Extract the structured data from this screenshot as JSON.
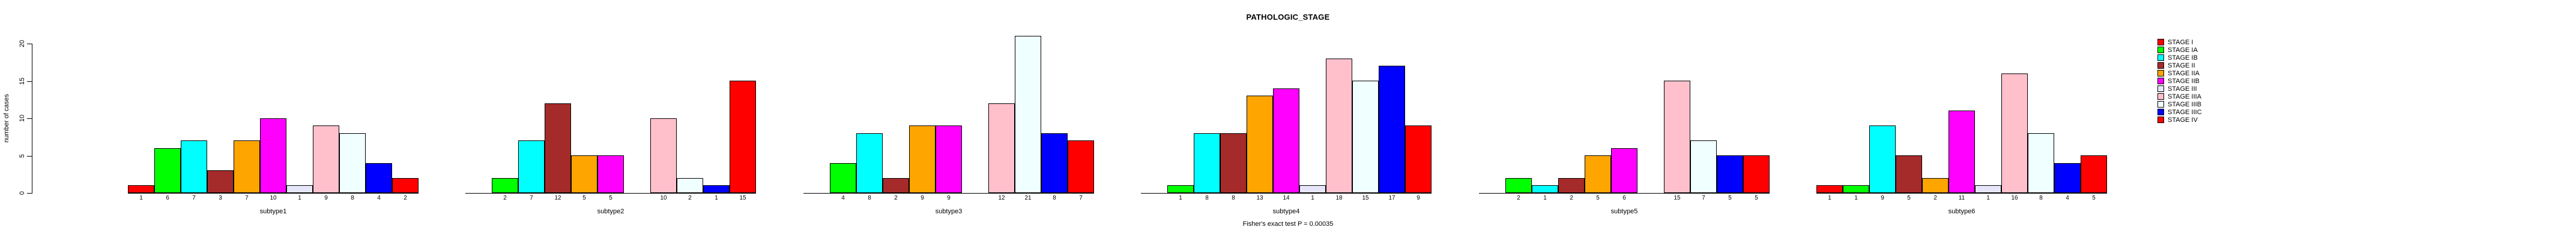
{
  "chart_data": {
    "type": "bar",
    "title": "PATHOLOGIC_STAGE",
    "xlabel": "",
    "ylabel": "number of cases",
    "ylim": [
      0,
      21
    ],
    "yticks": [
      0,
      5,
      10,
      15,
      20
    ],
    "grid": false,
    "legend_position": "right",
    "stages": [
      {
        "label": "STAGE I",
        "color": "#FF0000"
      },
      {
        "label": "STAGE IA",
        "color": "#00FF00"
      },
      {
        "label": "STAGE IB",
        "color": "#00FFFF"
      },
      {
        "label": "STAGE II",
        "color": "#A52A2A"
      },
      {
        "label": "STAGE IIA",
        "color": "#FFA500"
      },
      {
        "label": "STAGE IIB",
        "color": "#FF00FF"
      },
      {
        "label": "STAGE III",
        "color": "#E6E6FA"
      },
      {
        "label": "STAGE IIIA",
        "color": "#FFC0CB"
      },
      {
        "label": "STAGE IIIB",
        "color": "#F0FFFF"
      },
      {
        "label": "STAGE IIIC",
        "color": "#0000FF"
      },
      {
        "label": "STAGE IV",
        "color": "#FF0000"
      }
    ],
    "groups": [
      {
        "label": "subtype1",
        "values": [
          1,
          6,
          7,
          3,
          7,
          10,
          1,
          9,
          8,
          4,
          2
        ]
      },
      {
        "label": "subtype2",
        "values": [
          0,
          2,
          7,
          12,
          5,
          5,
          0,
          10,
          2,
          1,
          15
        ]
      },
      {
        "label": "subtype3",
        "values": [
          0,
          4,
          8,
          2,
          9,
          9,
          0,
          12,
          21,
          8,
          7
        ]
      },
      {
        "label": "subtype4",
        "values": [
          0,
          1,
          8,
          8,
          13,
          14,
          1,
          18,
          15,
          17,
          9
        ]
      },
      {
        "label": "subtype5",
        "values": [
          0,
          2,
          1,
          2,
          5,
          6,
          0,
          15,
          7,
          5,
          5
        ]
      },
      {
        "label": "subtype6",
        "values": [
          1,
          1,
          9,
          5,
          2,
          11,
          1,
          16,
          8,
          4,
          5
        ]
      }
    ],
    "caption": "Fisher's exact test P = 0.00035"
  }
}
